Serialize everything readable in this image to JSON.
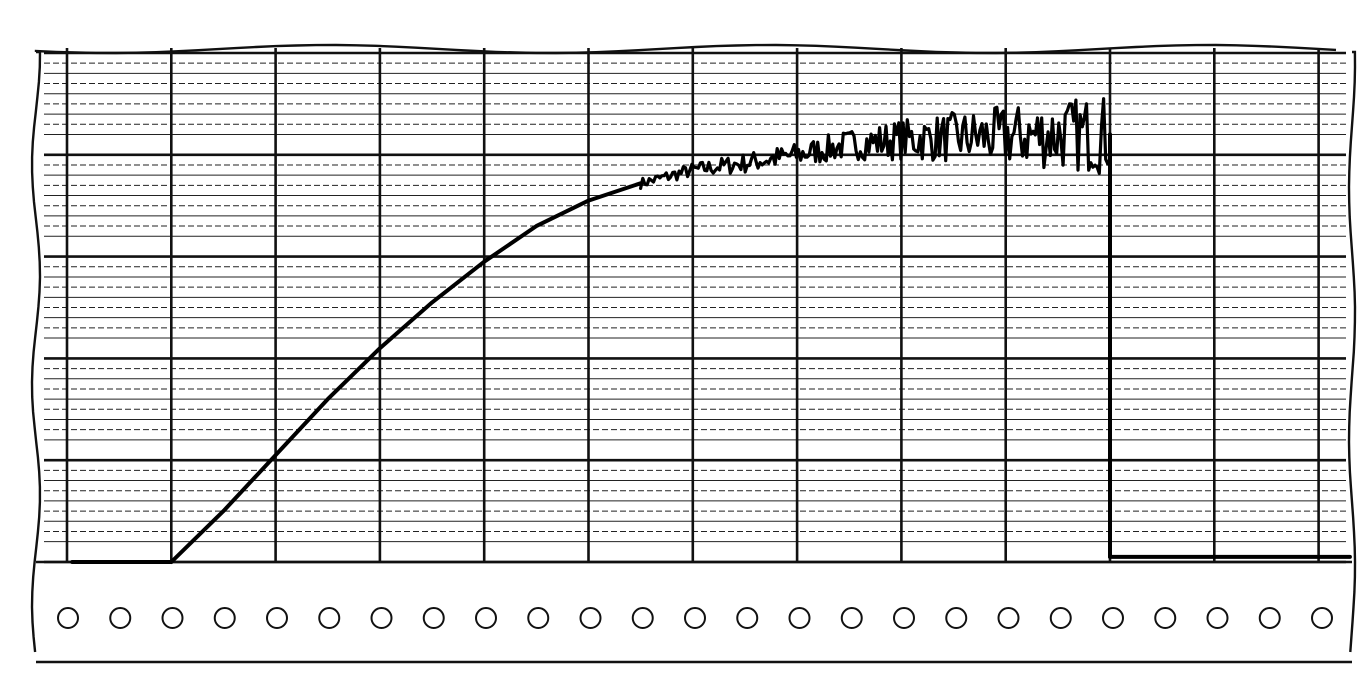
{
  "chart_data": {
    "type": "line",
    "title": "",
    "xlabel": "",
    "ylabel": "",
    "xlim": [
      0,
      12.5
    ],
    "ylim": [
      0,
      5
    ],
    "grid": true,
    "major_x_divisions": 12.5,
    "major_y_divisions": 5,
    "minor_y_per_major": 5,
    "series": [
      {
        "segments": [
          {
            "kind": "baseline",
            "x": [
              0.05,
              1.0
            ],
            "y": [
              0.0,
              0.0
            ]
          },
          {
            "kind": "rise",
            "x": [
              1.0,
              1.5,
              2.0,
              2.5,
              3.0,
              3.5,
              4.0,
              4.5,
              5.0,
              5.5
            ],
            "y": [
              0.0,
              0.5,
              1.05,
              1.6,
              2.1,
              2.55,
              2.95,
              3.3,
              3.55,
              3.72
            ]
          },
          {
            "kind": "noisy",
            "x": [
              5.5,
              6.0,
              6.5,
              7.0,
              7.5,
              8.0,
              8.5,
              9.0,
              9.5,
              10.0
            ],
            "y": [
              3.72,
              3.85,
              3.92,
              4.0,
              4.1,
              4.15,
              4.17,
              4.18,
              4.2,
              4.2
            ],
            "noise_amplitude": [
              0.05,
              0.07,
              0.1,
              0.12,
              0.15,
              0.2,
              0.25,
              0.3,
              0.35,
              0.4
            ]
          },
          {
            "kind": "drop",
            "x": [
              10.0,
              10.0
            ],
            "y": [
              4.2,
              0.05
            ]
          },
          {
            "kind": "baseline",
            "x": [
              10.0,
              12.3
            ],
            "y": [
              0.05,
              0.05
            ]
          }
        ]
      }
    ]
  },
  "colors": {
    "ink": "#000000",
    "paper": "#ffffff"
  },
  "strip": {
    "hole_count": 25
  }
}
